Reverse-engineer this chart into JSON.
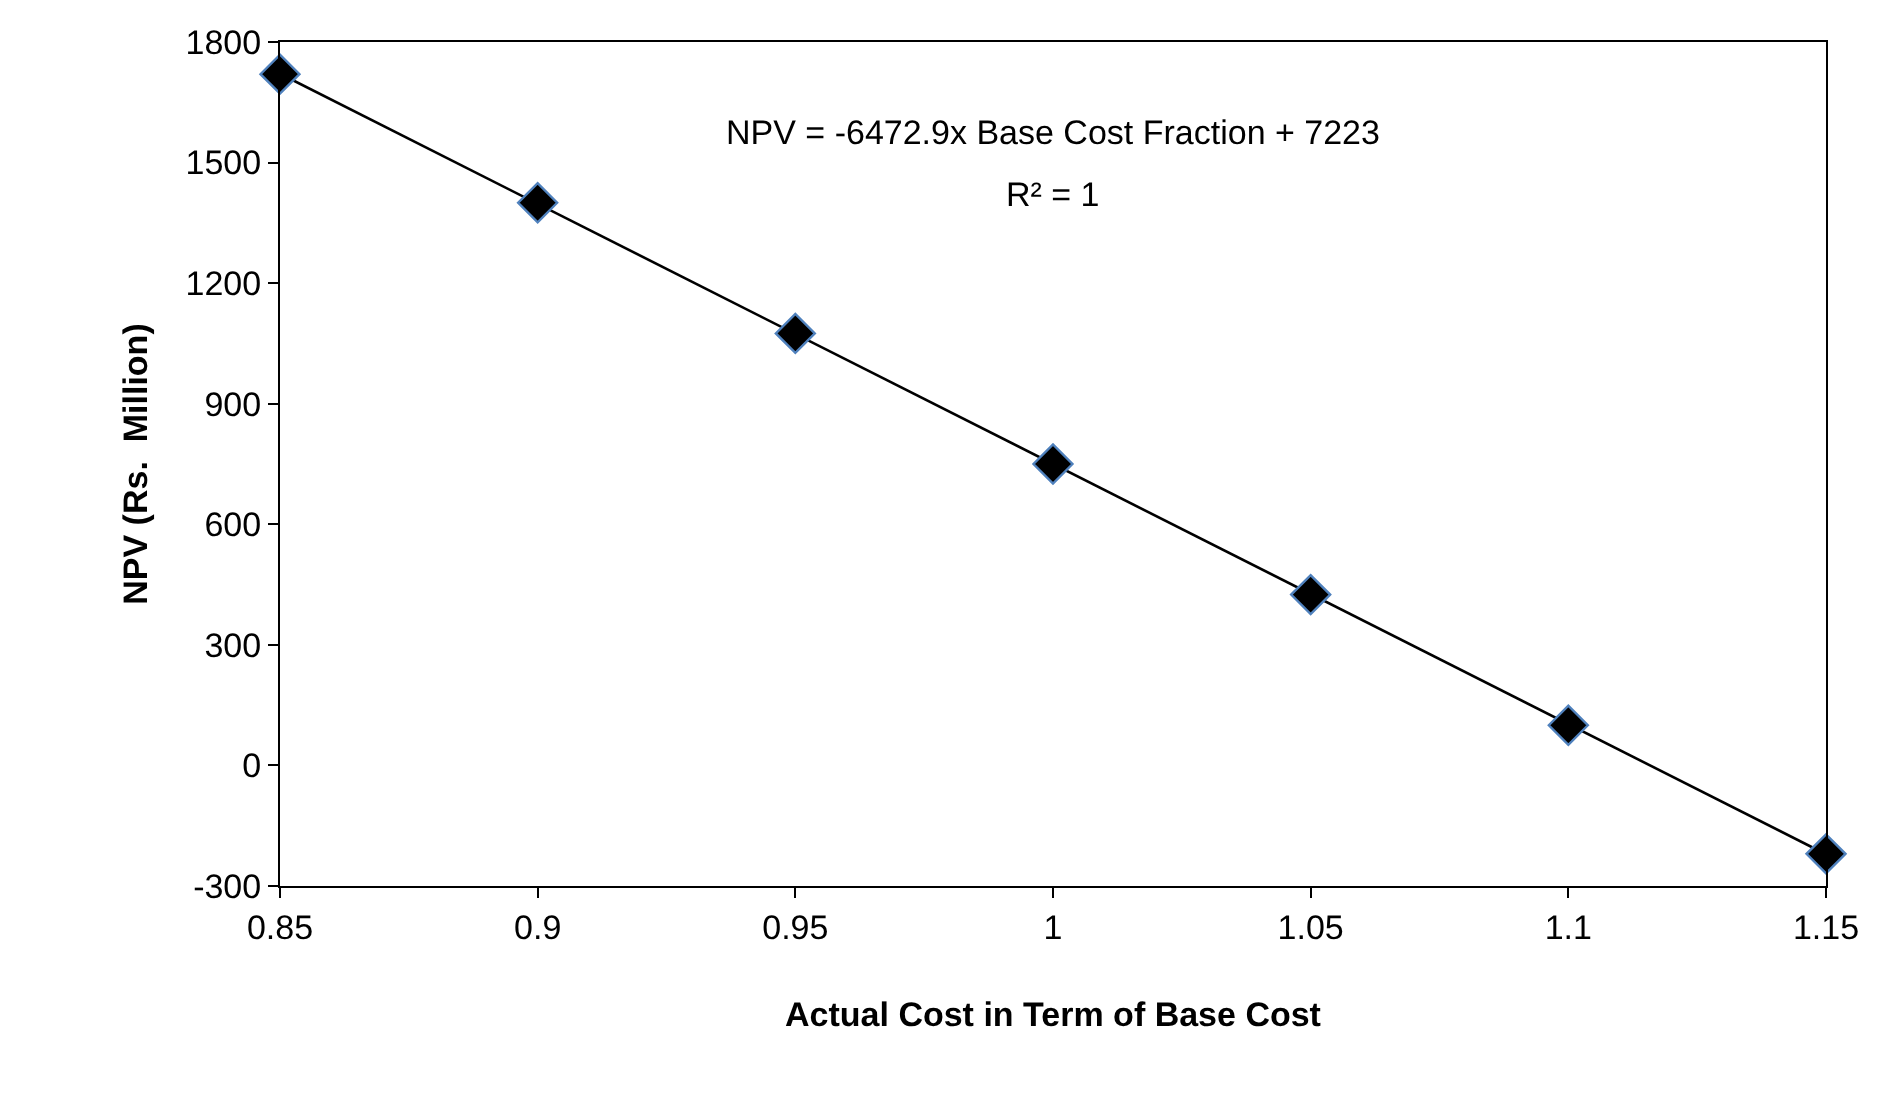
{
  "chart_data": {
    "type": "scatter",
    "xlabel": "Actual Cost in Term of Base Cost",
    "ylabel": "NPV (Rs.  Million)",
    "annotations": [
      "NPV = -6472.9x Base Cost Fraction + 7223",
      "R² = 1"
    ],
    "x": [
      0.85,
      0.9,
      0.95,
      1,
      1.05,
      1.1,
      1.15
    ],
    "series": [
      {
        "type": "line",
        "color": "#000000",
        "x": [
          0.85,
          1.15
        ],
        "values": [
          1721,
          -221
        ],
        "marker": "none",
        "line_style": "solid"
      },
      {
        "color": "#000000",
        "values": [
          1720,
          1400,
          1075,
          750,
          425,
          100,
          -220
        ],
        "marker": "diamond"
      }
    ],
    "xlim": [
      0.85,
      1.15
    ],
    "xticks": [
      0.85,
      0.9,
      0.95,
      1,
      1.05,
      1.1,
      1.15
    ],
    "ylim": [
      -300,
      1800
    ],
    "yticks": [
      -300,
      0,
      300,
      600,
      900,
      1200,
      1500,
      1800
    ],
    "legend": false
  }
}
